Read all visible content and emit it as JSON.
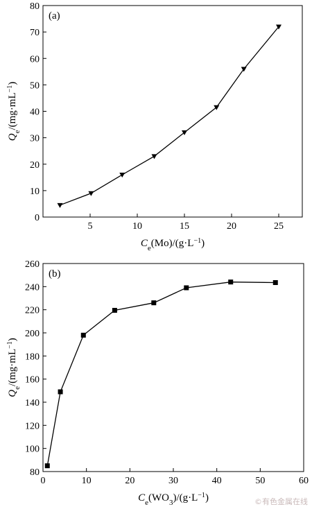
{
  "chart_data": [
    {
      "type": "line",
      "panel_label": "(a)",
      "xlabel_parts": [
        "C",
        "e",
        "(Mo)/(g·L",
        "−1",
        ")"
      ],
      "ylabel_parts": [
        "Q",
        "e",
        "/(mg·mL",
        "−1",
        ")"
      ],
      "xlim": [
        0,
        27.5
      ],
      "ylim": [
        0,
        80
      ],
      "x_ticks": [
        5,
        10,
        15,
        20,
        25
      ],
      "y_ticks": [
        0,
        10,
        20,
        30,
        40,
        50,
        60,
        70,
        80
      ],
      "marker": "triangle-down",
      "x": [
        1.8,
        5.1,
        8.4,
        11.8,
        15.0,
        18.4,
        21.3,
        25.0
      ],
      "y": [
        4.5,
        9,
        16,
        23,
        32,
        41.5,
        56,
        72
      ]
    },
    {
      "type": "line",
      "panel_label": "(b)",
      "xlabel_parts": [
        "C",
        "e",
        "(WO",
        "3",
        ")/(g·L",
        "−1",
        ")"
      ],
      "ylabel_parts": [
        "Q",
        "e",
        "/(mg·mL",
        "−1",
        ")"
      ],
      "xlim": [
        0,
        60
      ],
      "ylim": [
        80,
        260
      ],
      "x_ticks": [
        0,
        10,
        20,
        30,
        40,
        50,
        60
      ],
      "y_ticks": [
        80,
        100,
        120,
        140,
        160,
        180,
        200,
        220,
        240,
        260
      ],
      "marker": "square",
      "x": [
        1,
        4,
        9.3,
        16.5,
        25.5,
        33,
        43.2,
        53.5
      ],
      "y": [
        85,
        149,
        198,
        219.5,
        226,
        239,
        244,
        243.5
      ]
    }
  ],
  "watermark": "©有色金属在线"
}
